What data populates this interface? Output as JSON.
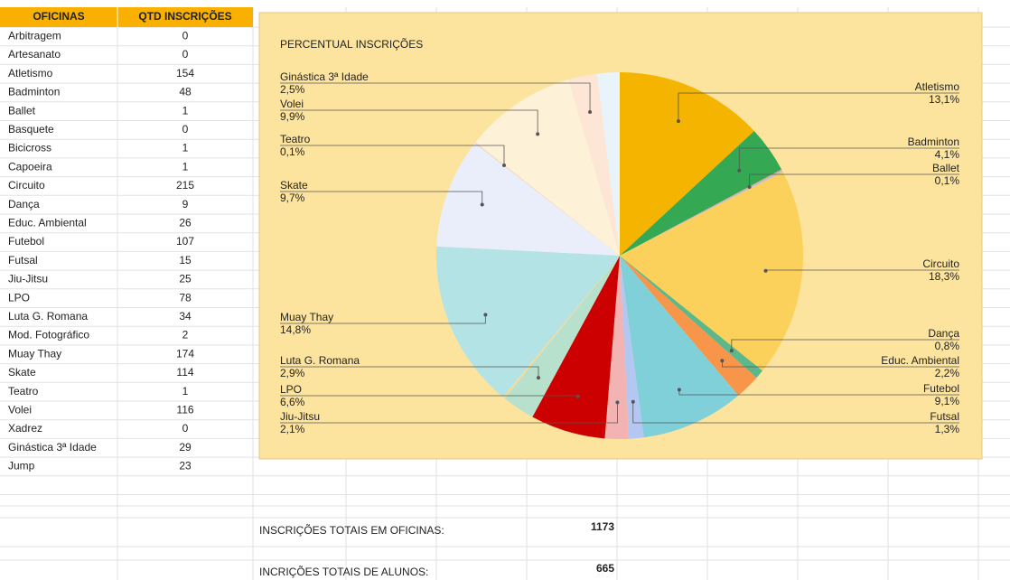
{
  "table": {
    "header": [
      "OFICINAS",
      "QTD INSCRIÇÕES"
    ],
    "rows": [
      [
        "Arbitragem",
        0
      ],
      [
        "Artesanato",
        0
      ],
      [
        "Atletismo",
        154
      ],
      [
        "Badminton",
        48
      ],
      [
        "Ballet",
        1
      ],
      [
        "Basquete",
        0
      ],
      [
        "Bicicross",
        1
      ],
      [
        "Capoeira",
        1
      ],
      [
        "Circuito",
        215
      ],
      [
        "Dança",
        9
      ],
      [
        "Educ. Ambiental",
        26
      ],
      [
        "Futebol",
        107
      ],
      [
        "Futsal",
        15
      ],
      [
        "Jiu-Jitsu",
        25
      ],
      [
        "LPO",
        78
      ],
      [
        "Luta G. Romana",
        34
      ],
      [
        "Mod. Fotográfico",
        2
      ],
      [
        "Muay Thay",
        174
      ],
      [
        "Skate",
        114
      ],
      [
        "Teatro",
        1
      ],
      [
        "Volei",
        116
      ],
      [
        "Xadrez",
        0
      ],
      [
        "Ginástica 3ª Idade",
        29
      ],
      [
        "Jump",
        23
      ]
    ]
  },
  "chart_data": {
    "type": "pie",
    "title": "PERCENTUAL INSCRIÇÕES",
    "categories": [
      "Atletismo",
      "Badminton",
      "Ballet",
      null,
      null,
      "Circuito",
      "Dança",
      "Educ. Ambiental",
      "Futebol",
      "Futsal",
      "Jiu-Jitsu",
      "LPO",
      "Luta G. Romana",
      null,
      "Muay Thay",
      "Skate",
      "Teatro",
      "Volei",
      "Ginástica 3ª Idade",
      null
    ],
    "values": [
      13.1,
      4.1,
      0.1,
      0.1,
      0.1,
      18.3,
      0.8,
      2.2,
      9.1,
      1.3,
      2.1,
      6.6,
      2.9,
      0.2,
      14.8,
      9.7,
      0.1,
      9.9,
      2.5,
      2.0
    ],
    "value_labels": [
      "13,1%",
      "4,1%",
      "0,1%",
      null,
      null,
      "18,3%",
      "0,8%",
      "2,2%",
      "9,1%",
      "1,3%",
      "2,1%",
      "6,6%",
      "2,9%",
      null,
      "14,8%",
      "9,7%",
      "0,1%",
      "9,9%",
      "2,5%",
      null
    ],
    "colors": [
      "#f4b400",
      "#34a853",
      "#e9a48c",
      "#9fc5e8",
      "#f6c28b",
      "#fbd15b",
      "#5cb88a",
      "#f7964a",
      "#7fd0d8",
      "#b4c7f2",
      "#f4b3b3",
      "#cc0000",
      "#b7e1cd",
      "#f3dba0",
      "#b4e3e6",
      "#e9eefa",
      "#f3d6c6",
      "#fdf2d8",
      "#fde6d6",
      "#e8f3fa"
    ]
  },
  "totals": [
    {
      "label": "INSCRIÇÕES TOTAIS EM OFICINAS:",
      "value": 1173
    },
    {
      "label": "INCRIÇÕES TOTAIS DE ALUNOS:",
      "value": 665
    }
  ]
}
